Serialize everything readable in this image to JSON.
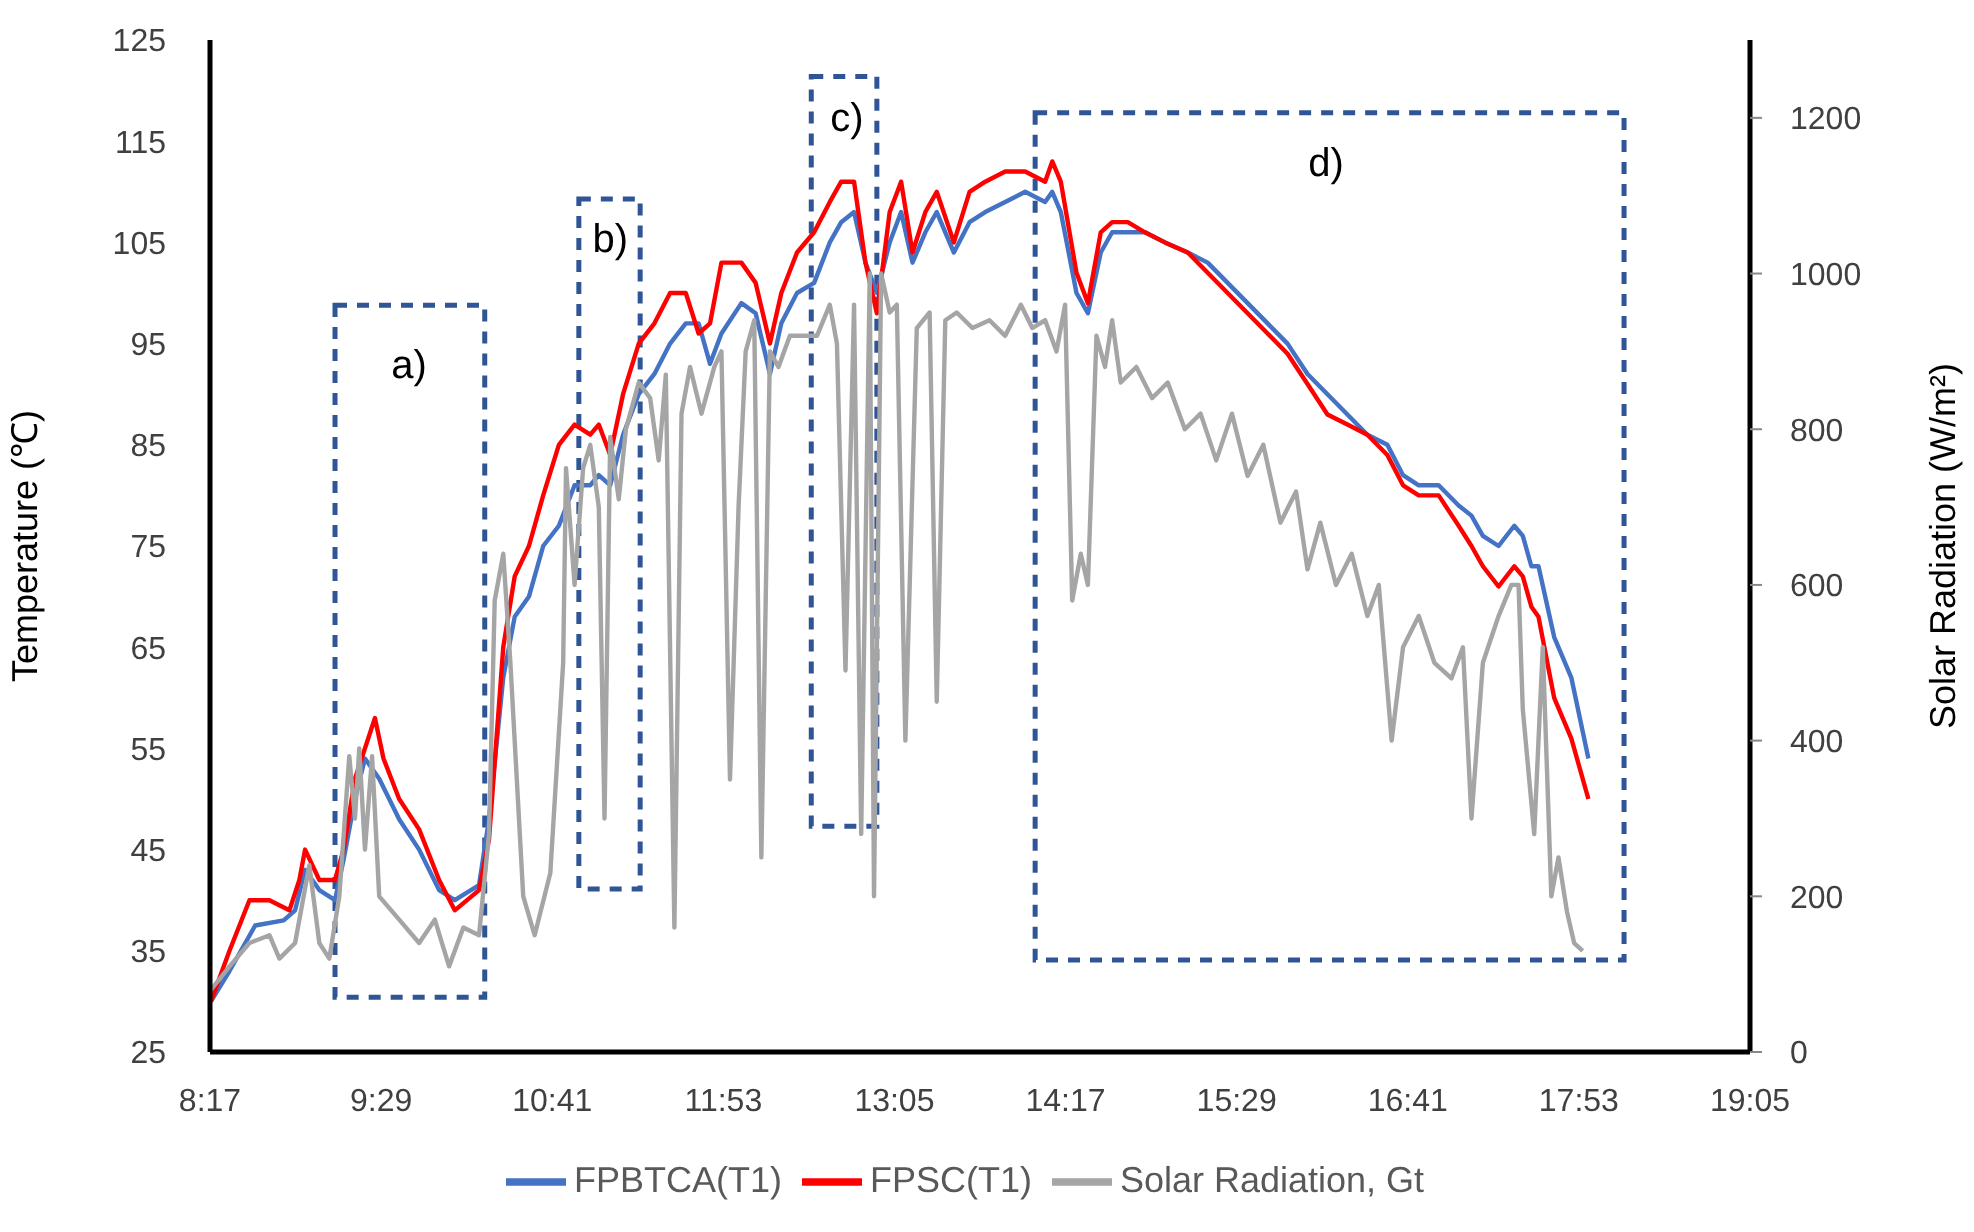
{
  "chart_data": {
    "type": "line",
    "ylabel": "Temperature (℃)",
    "y2label": "Solar Radiation (W/m²)",
    "xlim": [
      8.2833,
      19.0833
    ],
    "xticks": [
      {
        "value": 8.2833,
        "label": "8:17"
      },
      {
        "value": 9.4833,
        "label": "9:29"
      },
      {
        "value": 10.6833,
        "label": "10:41"
      },
      {
        "value": 11.8833,
        "label": "11:53"
      },
      {
        "value": 13.0833,
        "label": "13:05"
      },
      {
        "value": 14.2833,
        "label": "14:17"
      },
      {
        "value": 15.4833,
        "label": "15:29"
      },
      {
        "value": 16.6833,
        "label": "16:41"
      },
      {
        "value": 17.8833,
        "label": "17:53"
      },
      {
        "value": 19.0833,
        "label": "19:05"
      }
    ],
    "ylim": [
      25,
      125
    ],
    "yticks": [
      25,
      35,
      45,
      55,
      65,
      75,
      85,
      95,
      105,
      115,
      125
    ],
    "y2lim": [
      0,
      1300
    ],
    "y2ticks": [
      0,
      200,
      400,
      600,
      800,
      1000,
      1200
    ],
    "legend": "bottom",
    "marker": "none",
    "line_style": "solid",
    "annotations": [
      "a)",
      "b)",
      "c)",
      "d)"
    ],
    "series": [
      {
        "name": "FPBTCA(T1)",
        "color": "#4472c4",
        "x": [
          8.29,
          8.42,
          8.6,
          8.8,
          8.88,
          8.95,
          9.05,
          9.16,
          9.22,
          9.3,
          9.37,
          9.47,
          9.61,
          9.75,
          9.89,
          10.0,
          10.17,
          10.24,
          10.34,
          10.42,
          10.52,
          10.62,
          10.73,
          10.84,
          10.95,
          11.01,
          11.09,
          11.18,
          11.29,
          11.4,
          11.51,
          11.62,
          11.71,
          11.79,
          11.87,
          12.01,
          12.11,
          12.21,
          12.29,
          12.4,
          12.52,
          12.63,
          12.71,
          12.8,
          12.88,
          12.96,
          13.05,
          13.13,
          13.21,
          13.3,
          13.38,
          13.5,
          13.61,
          13.72,
          13.86,
          14.0,
          14.14,
          14.19,
          14.25,
          14.36,
          14.44,
          14.53,
          14.61,
          14.72,
          14.84,
          14.98,
          15.14,
          15.28,
          15.42,
          15.56,
          15.7,
          15.84,
          15.98,
          16.12,
          16.26,
          16.4,
          16.54,
          16.65,
          16.76,
          16.9,
          17.04,
          17.13,
          17.21,
          17.32,
          17.43,
          17.49,
          17.55,
          17.6,
          17.71,
          17.83,
          17.95
        ],
        "values": [
          30,
          33,
          37.5,
          38,
          39,
          43,
          41,
          40,
          44,
          50,
          54,
          52,
          48,
          45,
          41,
          40,
          41.5,
          48,
          62,
          68,
          70,
          75,
          77,
          81,
          81,
          82,
          81,
          86,
          90,
          92,
          95,
          97,
          97,
          93,
          96,
          99,
          98,
          92,
          97,
          100,
          101,
          105,
          107,
          108,
          103,
          100,
          105,
          108,
          103,
          106,
          108,
          104,
          107,
          108,
          109,
          110,
          109,
          110,
          108,
          100,
          98,
          104,
          106,
          106,
          106,
          105,
          104,
          103,
          101,
          99,
          97,
          95,
          92,
          90,
          88,
          86,
          85,
          82,
          81,
          81,
          79,
          78,
          76,
          75,
          77,
          76,
          73,
          73,
          66,
          62,
          54
        ]
      },
      {
        "name": "FPSC(T1)",
        "color": "#ff0000",
        "x": [
          8.29,
          8.42,
          8.56,
          8.7,
          8.84,
          8.91,
          8.95,
          9.05,
          9.16,
          9.22,
          9.3,
          9.37,
          9.44,
          9.5,
          9.61,
          9.75,
          9.89,
          10.0,
          10.17,
          10.24,
          10.34,
          10.42,
          10.52,
          10.62,
          10.73,
          10.84,
          10.95,
          11.01,
          11.09,
          11.18,
          11.29,
          11.4,
          11.51,
          11.62,
          11.71,
          11.79,
          11.87,
          12.01,
          12.11,
          12.21,
          12.29,
          12.4,
          12.52,
          12.63,
          12.71,
          12.8,
          12.88,
          12.96,
          13.05,
          13.13,
          13.21,
          13.3,
          13.38,
          13.5,
          13.61,
          13.72,
          13.86,
          14.0,
          14.14,
          14.19,
          14.25,
          14.36,
          14.44,
          14.53,
          14.61,
          14.72,
          14.84,
          14.98,
          15.14,
          15.28,
          15.42,
          15.56,
          15.7,
          15.84,
          15.98,
          16.12,
          16.26,
          16.4,
          16.54,
          16.65,
          16.76,
          16.9,
          17.04,
          17.13,
          17.21,
          17.32,
          17.43,
          17.49,
          17.55,
          17.6,
          17.71,
          17.83,
          17.95
        ],
        "values": [
          30,
          35,
          40,
          40,
          39,
          42,
          45,
          42,
          42,
          45,
          52,
          55,
          58,
          54,
          50,
          47,
          42,
          39,
          41,
          46,
          65,
          72,
          75,
          80,
          85,
          87,
          86,
          87,
          84,
          90,
          95,
          97,
          100,
          100,
          96,
          97,
          103,
          103,
          101,
          95,
          100,
          104,
          106,
          109,
          111,
          111,
          103,
          98,
          108,
          111,
          104,
          108,
          110,
          105,
          110,
          111,
          112,
          112,
          111,
          113,
          111,
          102,
          99,
          106,
          107,
          107,
          106,
          105,
          104,
          102,
          100,
          98,
          96,
          94,
          91,
          88,
          87,
          86,
          84,
          81,
          80,
          80,
          77,
          75,
          73,
          71,
          73,
          72,
          69,
          68,
          60,
          56,
          50
        ]
      },
      {
        "name": "Solar Radiation, Gt",
        "color": "#a5a5a5",
        "axis": "y2",
        "x": [
          8.29,
          8.42,
          8.56,
          8.7,
          8.77,
          8.88,
          8.98,
          9.05,
          9.12,
          9.19,
          9.26,
          9.3,
          9.33,
          9.37,
          9.42,
          9.47,
          9.61,
          9.75,
          9.86,
          9.96,
          10.06,
          10.17,
          10.24,
          10.28,
          10.34,
          10.39,
          10.48,
          10.56,
          10.67,
          10.76,
          10.78,
          10.84,
          10.9,
          10.95,
          11.01,
          11.05,
          11.09,
          11.15,
          11.2,
          11.29,
          11.37,
          11.43,
          11.48,
          11.54,
          11.59,
          11.65,
          11.73,
          11.82,
          11.87,
          11.93,
          11.99,
          12.04,
          12.1,
          12.15,
          12.21,
          12.27,
          12.35,
          12.46,
          12.54,
          12.63,
          12.68,
          12.74,
          12.8,
          12.85,
          12.91,
          12.94,
          12.99,
          13.05,
          13.1,
          13.16,
          13.24,
          13.33,
          13.38,
          13.44,
          13.52,
          13.63,
          13.75,
          13.86,
          13.97,
          14.05,
          14.14,
          14.22,
          14.28,
          14.33,
          14.39,
          14.44,
          14.5,
          14.56,
          14.61,
          14.67,
          14.78,
          14.89,
          15.0,
          15.12,
          15.23,
          15.34,
          15.45,
          15.56,
          15.67,
          15.79,
          15.9,
          15.98,
          16.07,
          16.18,
          16.29,
          16.4,
          16.48,
          16.57,
          16.65,
          16.76,
          16.87,
          16.99,
          17.07,
          17.13,
          17.21,
          17.32,
          17.41,
          17.46,
          17.49,
          17.57,
          17.63,
          17.69,
          17.74,
          17.8,
          17.85,
          17.91
        ],
        "values": [
          80,
          110,
          140,
          150,
          120,
          140,
          240,
          140,
          120,
          200,
          380,
          300,
          390,
          260,
          380,
          200,
          170,
          140,
          170,
          110,
          160,
          150,
          280,
          580,
          640,
          500,
          200,
          150,
          230,
          500,
          750,
          600,
          750,
          780,
          700,
          300,
          790,
          710,
          800,
          860,
          840,
          760,
          870,
          160,
          820,
          880,
          820,
          880,
          900,
          350,
          700,
          900,
          940,
          250,
          900,
          880,
          920,
          920,
          920,
          960,
          910,
          490,
          960,
          280,
          1000,
          200,
          1000,
          950,
          960,
          400,
          930,
          950,
          450,
          940,
          950,
          930,
          940,
          920,
          960,
          930,
          940,
          900,
          960,
          580,
          640,
          600,
          920,
          880,
          940,
          860,
          880,
          840,
          860,
          800,
          820,
          760,
          820,
          740,
          780,
          680,
          720,
          620,
          680,
          600,
          640,
          560,
          600,
          400,
          520,
          560,
          500,
          480,
          520,
          300,
          500,
          560,
          600,
          600,
          440,
          280,
          520,
          200,
          250,
          180,
          140,
          130
        ]
      }
    ]
  }
}
